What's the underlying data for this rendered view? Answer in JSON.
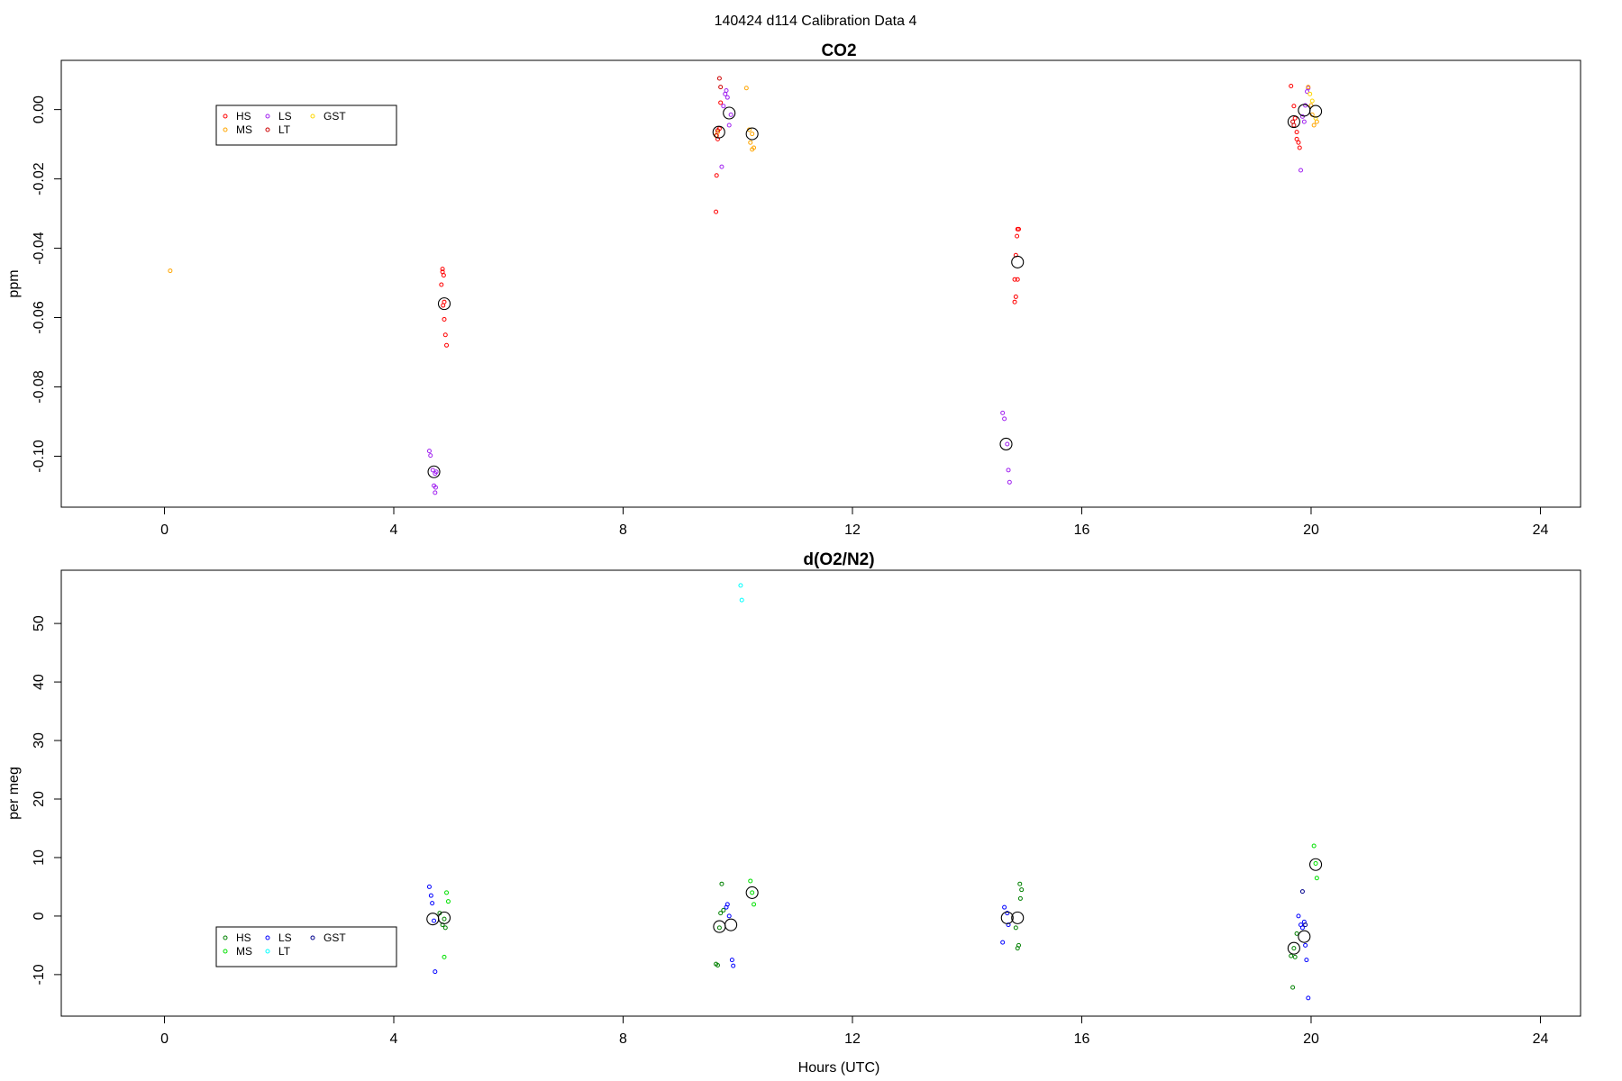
{
  "figure": {
    "title": "140424   d114   Calibration Data 4"
  },
  "chart_data": [
    {
      "type": "scatter",
      "title": "CO2",
      "xlabel": "",
      "ylabel": "ppm",
      "xlim": [
        -1.8,
        24.7
      ],
      "ylim": [
        -0.1147,
        0.0142
      ],
      "xticks": [
        0,
        4,
        8,
        12,
        16,
        20,
        24
      ],
      "yticks": [
        0.0,
        -0.02,
        -0.04,
        -0.06,
        -0.08,
        -0.1
      ],
      "ytick_labels": [
        "0.00",
        "-0.02",
        "-0.04",
        "-0.06",
        "-0.08",
        "-0.10"
      ],
      "grid": false,
      "legend": {
        "position": "top-left",
        "entries": [
          {
            "name": "HS",
            "color": "#ff0000"
          },
          {
            "name": "LS",
            "color": "#a020f0"
          },
          {
            "name": "GST",
            "color": "#ffd700"
          },
          {
            "name": "MS",
            "color": "#ffa500"
          },
          {
            "name": "LT",
            "color": "#cd0000"
          }
        ]
      },
      "series": [
        {
          "name": "HS",
          "color": "#ff0000",
          "points": [
            [
              4.85,
              -0.046
            ],
            [
              4.85,
              -0.0468
            ],
            [
              4.87,
              -0.0478
            ],
            [
              4.83,
              -0.0505
            ],
            [
              4.88,
              -0.0555
            ],
            [
              4.86,
              -0.0565
            ],
            [
              4.88,
              -0.0605
            ],
            [
              4.9,
              -0.065
            ],
            [
              4.92,
              -0.068
            ],
            [
              9.62,
              -0.0295
            ],
            [
              9.63,
              -0.019
            ],
            [
              9.65,
              -0.0085
            ],
            [
              9.68,
              -0.0055
            ],
            [
              9.7,
              0.002
            ],
            [
              14.85,
              -0.042
            ],
            [
              14.88,
              -0.0345
            ],
            [
              14.9,
              -0.0345
            ],
            [
              14.87,
              -0.0365
            ],
            [
              14.83,
              -0.049
            ],
            [
              14.88,
              -0.049
            ],
            [
              14.85,
              -0.054
            ],
            [
              14.83,
              -0.0555
            ],
            [
              19.65,
              0.0068
            ],
            [
              19.7,
              0.001
            ],
            [
              19.72,
              -0.0025
            ],
            [
              19.75,
              -0.0065
            ],
            [
              19.75,
              -0.0085
            ],
            [
              19.78,
              -0.0095
            ],
            [
              19.8,
              -0.011
            ]
          ]
        },
        {
          "name": "LS",
          "color": "#a020f0",
          "points": [
            [
              4.62,
              -0.0985
            ],
            [
              4.64,
              -0.0998
            ],
            [
              4.68,
              -0.104
            ],
            [
              4.72,
              -0.105
            ],
            [
              4.74,
              -0.1045
            ],
            [
              4.7,
              -0.1085
            ],
            [
              4.73,
              -0.109
            ],
            [
              4.72,
              -0.1105
            ],
            [
              9.72,
              -0.0165
            ],
            [
              9.75,
              0.001
            ],
            [
              9.78,
              0.0045
            ],
            [
              9.8,
              0.0055
            ],
            [
              9.82,
              0.0035
            ],
            [
              9.85,
              -0.0045
            ],
            [
              9.88,
              -0.0015
            ],
            [
              14.62,
              -0.0875
            ],
            [
              14.65,
              -0.0892
            ],
            [
              14.7,
              -0.0965
            ],
            [
              14.72,
              -0.104
            ],
            [
              14.74,
              -0.1075
            ],
            [
              19.82,
              -0.0175
            ],
            [
              19.85,
              -0.002
            ],
            [
              19.88,
              -0.0035
            ],
            [
              19.9,
              0.0012
            ],
            [
              19.93,
              0.0052
            ],
            [
              19.95,
              0.0062
            ]
          ]
        },
        {
          "name": "MS",
          "color": "#ffa500",
          "points": [
            [
              0.1,
              -0.0465
            ],
            [
              9.65,
              -0.0065
            ],
            [
              9.62,
              -0.0075
            ],
            [
              10.15,
              0.0062
            ],
            [
              10.2,
              -0.0058
            ],
            [
              10.22,
              -0.0095
            ],
            [
              10.25,
              -0.0115
            ],
            [
              10.28,
              -0.011
            ],
            [
              10.25,
              -0.007
            ],
            [
              19.95,
              0.0065
            ],
            [
              20.02,
              -0.0015
            ],
            [
              20.05,
              -0.0045
            ],
            [
              20.1,
              -0.0035
            ],
            [
              20.0,
              0.0012
            ]
          ]
        },
        {
          "name": "LT",
          "color": "#cd0000",
          "points": [
            [
              9.68,
              0.009
            ],
            [
              9.7,
              0.0065
            ],
            [
              9.63,
              -0.0075
            ],
            [
              9.65,
              -0.006
            ],
            [
              19.68,
              -0.0035
            ],
            [
              19.7,
              -0.0045
            ]
          ]
        },
        {
          "name": "GST",
          "color": "#ffd700",
          "points": [
            [
              19.98,
              0.0045
            ],
            [
              20.02,
              0.0025
            ],
            [
              20.08,
              -0.0025
            ]
          ]
        },
        {
          "name": "mean",
          "color": "#000000",
          "large": true,
          "points": [
            [
              4.88,
              -0.056
            ],
            [
              4.7,
              -0.1045
            ],
            [
              9.67,
              -0.0065
            ],
            [
              9.85,
              -0.001
            ],
            [
              10.25,
              -0.007
            ],
            [
              14.68,
              -0.0965
            ],
            [
              14.88,
              -0.044
            ],
            [
              19.7,
              -0.0035
            ],
            [
              19.88,
              -0.0002
            ],
            [
              20.08,
              -0.0005
            ]
          ]
        }
      ]
    },
    {
      "type": "scatter",
      "title": "d(O2/N2)",
      "xlabel": "Hours (UTC)",
      "ylabel": "per meg",
      "xlim": [
        -1.8,
        24.7
      ],
      "ylim": [
        -17.1,
        59.1
      ],
      "xticks": [
        0,
        4,
        8,
        12,
        16,
        20,
        24
      ],
      "yticks": [
        -10,
        0,
        10,
        20,
        30,
        40,
        50
      ],
      "ytick_labels": [
        "-10",
        "0",
        "10",
        "20",
        "30",
        "40",
        "50"
      ],
      "grid": false,
      "legend": {
        "position": "bottom-left",
        "entries": [
          {
            "name": "HS",
            "color": "#008000"
          },
          {
            "name": "LS",
            "color": "#0000ff"
          },
          {
            "name": "GST",
            "color": "#00008b"
          },
          {
            "name": "MS",
            "color": "#00e000"
          },
          {
            "name": "LT",
            "color": "#00ffff"
          }
        ]
      },
      "series": [
        {
          "name": "HS",
          "color": "#008000",
          "points": [
            [
              4.8,
              0.5
            ],
            [
              4.85,
              -1.5
            ],
            [
              4.88,
              -0.5
            ],
            [
              4.9,
              -2
            ],
            [
              9.62,
              -8.2
            ],
            [
              9.65,
              -8.4
            ],
            [
              9.68,
              -2
            ],
            [
              9.7,
              0.5
            ],
            [
              9.72,
              5.5
            ],
            [
              9.75,
              1
            ],
            [
              14.85,
              -2
            ],
            [
              14.88,
              -5.5
            ],
            [
              14.9,
              -5
            ],
            [
              14.92,
              5.5
            ],
            [
              14.95,
              4.5
            ],
            [
              14.93,
              3
            ],
            [
              19.65,
              -6.8
            ],
            [
              19.68,
              -12.2
            ],
            [
              19.7,
              -5.5
            ],
            [
              19.72,
              -7
            ],
            [
              19.75,
              -3
            ]
          ]
        },
        {
          "name": "MS",
          "color": "#00e000",
          "points": [
            [
              4.88,
              -7
            ],
            [
              4.92,
              4
            ],
            [
              4.95,
              2.5
            ],
            [
              10.22,
              6
            ],
            [
              10.25,
              4
            ],
            [
              10.28,
              2
            ],
            [
              20.05,
              12
            ],
            [
              20.08,
              9
            ],
            [
              20.1,
              6.5
            ]
          ]
        },
        {
          "name": "LS",
          "color": "#0000ff",
          "points": [
            [
              4.62,
              5
            ],
            [
              4.65,
              3.5
            ],
            [
              4.67,
              2.2
            ],
            [
              4.7,
              -0.8
            ],
            [
              4.72,
              -9.5
            ],
            [
              9.8,
              1.5
            ],
            [
              9.82,
              2
            ],
            [
              9.85,
              0
            ],
            [
              9.9,
              -7.5
            ],
            [
              9.92,
              -8.5
            ],
            [
              14.62,
              -4.5
            ],
            [
              14.65,
              1.5
            ],
            [
              14.7,
              0.5
            ],
            [
              14.72,
              -1.5
            ],
            [
              19.78,
              0
            ],
            [
              19.82,
              -1.5
            ],
            [
              19.85,
              -2
            ],
            [
              19.88,
              -1
            ],
            [
              19.9,
              -5
            ],
            [
              19.92,
              -7.5
            ],
            [
              19.95,
              -14
            ]
          ]
        },
        {
          "name": "LT",
          "color": "#00ffff",
          "points": [
            [
              10.05,
              56.5
            ],
            [
              10.07,
              54
            ]
          ]
        },
        {
          "name": "GST",
          "color": "#00008b",
          "points": [
            [
              19.85,
              4.2
            ],
            [
              19.9,
              -1.5
            ]
          ]
        },
        {
          "name": "mean",
          "color": "#000000",
          "large": true,
          "points": [
            [
              4.68,
              -0.5
            ],
            [
              4.88,
              -0.3
            ],
            [
              9.68,
              -1.8
            ],
            [
              9.88,
              -1.5
            ],
            [
              10.25,
              4
            ],
            [
              14.7,
              -0.3
            ],
            [
              14.88,
              -0.3
            ],
            [
              19.7,
              -5.5
            ],
            [
              19.88,
              -3.5
            ],
            [
              20.08,
              8.8
            ]
          ]
        }
      ]
    }
  ]
}
